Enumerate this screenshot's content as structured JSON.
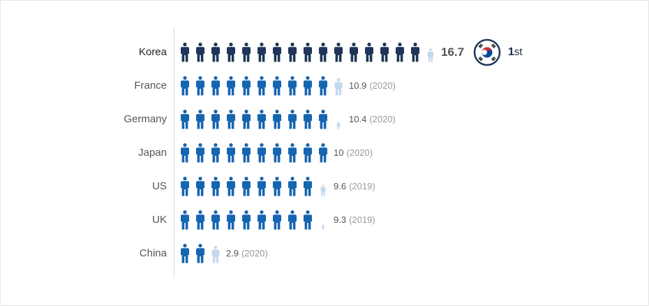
{
  "chart_data": {
    "type": "pictogram",
    "categories": [
      "Korea",
      "France",
      "Germany",
      "Japan",
      "US",
      "UK",
      "China"
    ],
    "values": [
      16.7,
      10.9,
      10.4,
      10,
      9.6,
      9.3,
      2.9
    ],
    "value_labels": [
      "16.7",
      "10.9",
      "10.4",
      "10",
      "9.6",
      "9.3",
      "2.9"
    ],
    "year_labels": [
      "",
      "(2020)",
      "(2020)",
      "(2020)",
      "(2019)",
      "(2019)",
      "(2020)"
    ],
    "highlight": "Korea",
    "rank_number": "1",
    "rank_suffix": "st",
    "colors": {
      "highlight_icon": "#1d3557",
      "icon": "#1565b0",
      "partial_icon": "#c3d9ee",
      "flag_red": "#cd2e3a",
      "flag_blue": "#0047a0",
      "flag_ring": "#1d3557"
    }
  }
}
